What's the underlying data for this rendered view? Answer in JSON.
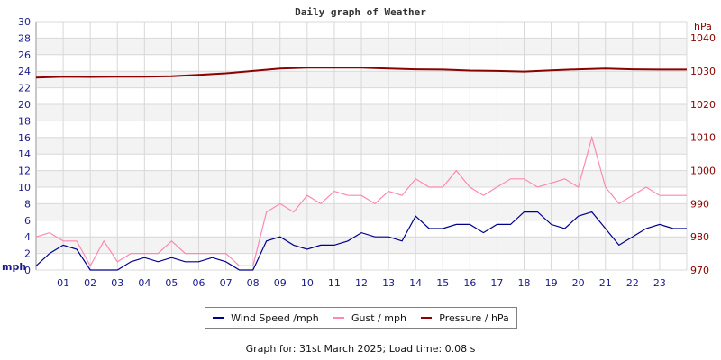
{
  "chart_data": {
    "type": "line",
    "title": "Daily graph of Weather",
    "left_axis": {
      "label": "mph",
      "ylim": [
        0,
        30
      ],
      "ticks": [
        "0",
        "2",
        "4",
        "6",
        "8",
        "10",
        "12",
        "14",
        "16",
        "18",
        "20",
        "22",
        "24",
        "26",
        "28",
        "30"
      ]
    },
    "right_axis": {
      "label": "hPa",
      "ylim": [
        970,
        1044.9
      ],
      "ticks": [
        "970",
        "980",
        "990",
        "1000",
        "1010",
        "1020",
        "1030",
        "1040"
      ]
    },
    "x_ticks": [
      "01",
      "02",
      "03",
      "04",
      "05",
      "06",
      "07",
      "08",
      "09",
      "10",
      "11",
      "12",
      "13",
      "14",
      "15",
      "16",
      "17",
      "18",
      "19",
      "20",
      "21",
      "22",
      "23"
    ],
    "xlim": [
      0,
      24
    ],
    "grid": true,
    "legend_placement": "bottom",
    "series": [
      {
        "name": "Wind Speed /mph",
        "color": "#00008b",
        "axis": "left",
        "x": [
          0,
          0.5,
          1,
          1.5,
          2,
          2.5,
          3,
          3.5,
          4,
          4.5,
          5,
          5.5,
          6,
          6.5,
          7,
          7.5,
          8,
          8.5,
          9,
          9.5,
          10,
          10.5,
          11,
          11.5,
          12,
          12.5,
          13,
          13.5,
          14,
          14.5,
          15,
          15.5,
          16,
          16.5,
          17,
          17.5,
          18,
          18.5,
          19,
          19.5,
          20,
          20.5,
          21,
          21.5,
          22,
          22.5,
          23,
          23.5,
          24
        ],
        "y": [
          0.5,
          2,
          3,
          2.5,
          0,
          0,
          0,
          1,
          1.5,
          1,
          1.5,
          1,
          1,
          1.5,
          1,
          0,
          0,
          3.5,
          4,
          3,
          2.5,
          3,
          3,
          3.5,
          4.5,
          4,
          4,
          3.5,
          6.5,
          5,
          5,
          5.5,
          5.5,
          4.5,
          5.5,
          5.5,
          7,
          7,
          5.5,
          5,
          6.5,
          7,
          5,
          3,
          4,
          5,
          5.5,
          5,
          5
        ]
      },
      {
        "name": "Gust / mph",
        "color": "#ff88b0",
        "axis": "left",
        "x": [
          0,
          0.5,
          1,
          1.5,
          2,
          2.5,
          3,
          3.5,
          4,
          4.5,
          5,
          5.5,
          6,
          6.5,
          7,
          7.5,
          8,
          8.5,
          9,
          9.5,
          10,
          10.5,
          11,
          11.5,
          12,
          12.5,
          13,
          13.5,
          14,
          14.5,
          15,
          15.5,
          16,
          16.5,
          17,
          17.5,
          18,
          18.5,
          19,
          19.5,
          20,
          20.5,
          21,
          21.5,
          22,
          22.5,
          23,
          23.5,
          24
        ],
        "y": [
          4,
          4.5,
          3.5,
          3.5,
          0.5,
          3.5,
          1,
          2,
          2,
          2,
          3.5,
          2,
          2,
          2,
          2,
          0.5,
          0.5,
          7,
          8,
          7,
          9,
          8,
          9.5,
          9,
          9,
          8,
          9.5,
          9,
          11,
          10,
          10,
          12,
          10,
          9,
          10,
          11,
          11,
          10,
          10.5,
          11,
          10,
          16,
          10,
          8,
          9,
          10,
          9,
          9,
          9
        ]
      },
      {
        "name": "Pressure / hPa",
        "color": "#8b0000",
        "axis": "right",
        "x": [
          0,
          1,
          2,
          3,
          4,
          5,
          6,
          7,
          8,
          9,
          10,
          11,
          12,
          13,
          14,
          15,
          16,
          17,
          18,
          19,
          20,
          21,
          22,
          23,
          24
        ],
        "y": [
          1028,
          1028.3,
          1028.2,
          1028.3,
          1028.3,
          1028.4,
          1028.8,
          1029.3,
          1030,
          1030.7,
          1031,
          1031,
          1031,
          1030.7,
          1030.5,
          1030.4,
          1030.1,
          1030,
          1029.8,
          1030.2,
          1030.5,
          1030.7,
          1030.5,
          1030.4,
          1030.4
        ]
      }
    ]
  },
  "legend": {
    "wind": "Wind Speed /mph",
    "gust": "Gust / mph",
    "pressure": "Pressure / hPa"
  },
  "footer": "Graph for: 31st March 2025; Load time: 0.08 s"
}
